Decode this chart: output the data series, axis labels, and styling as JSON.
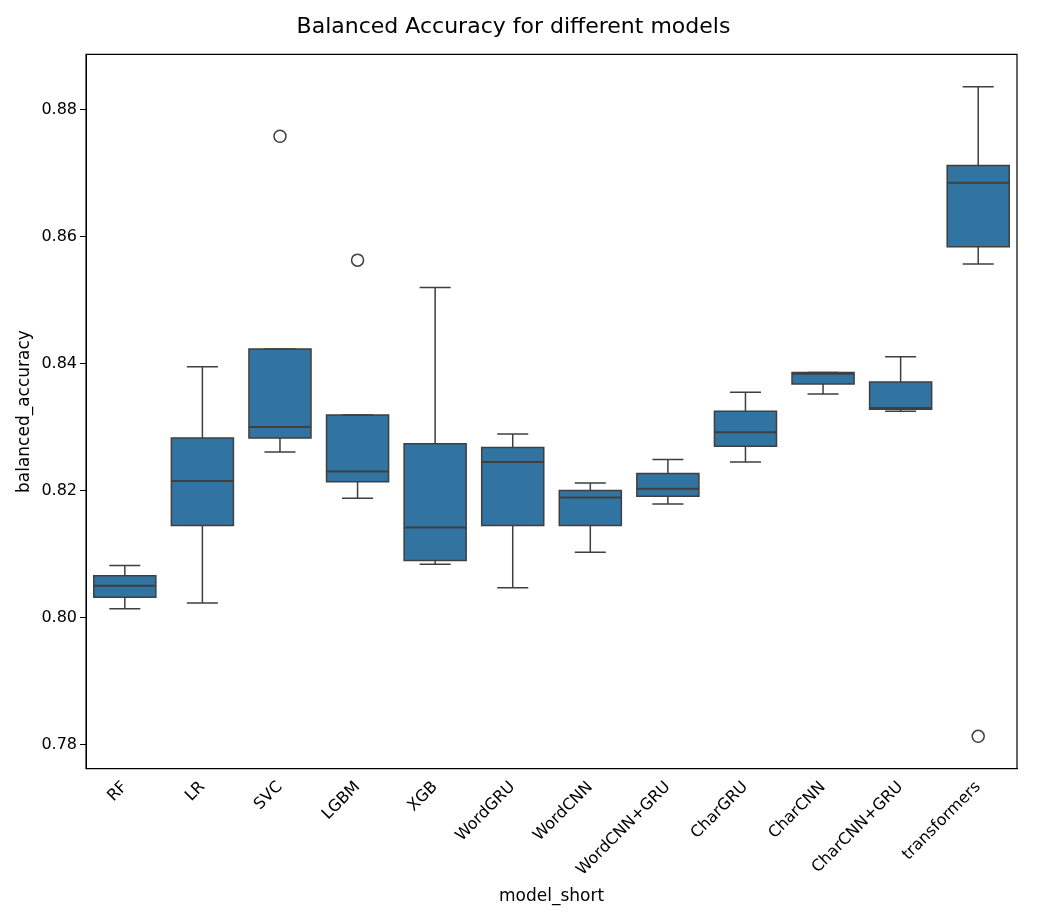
{
  "chart_data": {
    "type": "box",
    "title": "Balanced Accuracy for different models",
    "xlabel": "model_short",
    "ylabel": "balanced_accuracy",
    "categories": [
      "RF",
      "LR",
      "SVC",
      "LGBM",
      "XGB",
      "WordGRU",
      "WordCNN",
      "WordCNN+GRU",
      "CharGRU",
      "CharCNN",
      "CharCNN+GRU",
      "transformers"
    ],
    "color": "#3274a1",
    "boxes": [
      {
        "low": 0.8014,
        "q1": 0.8032,
        "median": 0.805,
        "q3": 0.8066,
        "high": 0.8082
      },
      {
        "low": 0.8023,
        "q1": 0.8145,
        "median": 0.8215,
        "q3": 0.8283,
        "high": 0.8395
      },
      {
        "low": 0.8261,
        "q1": 0.8283,
        "median": 0.83,
        "q3": 0.8423,
        "high": 0.8423,
        "outliers": [
          0.8758
        ]
      },
      {
        "low": 0.8188,
        "q1": 0.8214,
        "median": 0.823,
        "q3": 0.8319,
        "high": 0.8319,
        "outliers": [
          0.8563
        ]
      },
      {
        "low": 0.8084,
        "q1": 0.809,
        "median": 0.8142,
        "q3": 0.8274,
        "high": 0.852
      },
      {
        "low": 0.8047,
        "q1": 0.8145,
        "median": 0.8245,
        "q3": 0.8268,
        "high": 0.8289
      },
      {
        "low": 0.8103,
        "q1": 0.8145,
        "median": 0.8189,
        "q3": 0.82,
        "high": 0.8212
      },
      {
        "low": 0.8179,
        "q1": 0.8191,
        "median": 0.8203,
        "q3": 0.8227,
        "high": 0.8249
      },
      {
        "low": 0.8245,
        "q1": 0.827,
        "median": 0.8292,
        "q3": 0.8325,
        "high": 0.8355
      },
      {
        "low": 0.8352,
        "q1": 0.8368,
        "median": 0.8384,
        "q3": 0.8386,
        "high": 0.8386
      },
      {
        "low": 0.8325,
        "q1": 0.8328,
        "median": 0.833,
        "q3": 0.8371,
        "high": 0.8411
      },
      {
        "low": 0.8557,
        "q1": 0.8584,
        "median": 0.8685,
        "q3": 0.8712,
        "high": 0.8836,
        "outliers": [
          0.7813
        ]
      }
    ],
    "ylim": [
      0.7762,
      0.8887
    ],
    "yticks": [
      0.78,
      {
        "value": 0.8,
        "label": "0.80"
      },
      0.82,
      0.84,
      0.86,
      0.88
    ],
    "grid": false,
    "legend": false
  }
}
